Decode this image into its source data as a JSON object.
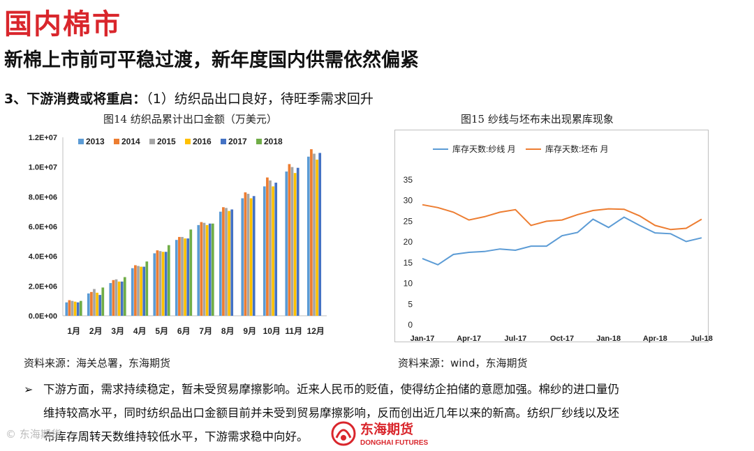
{
  "header": {
    "title": "国内棉市",
    "subtitle": "新棉上市前可平稳过渡，新年度国内供需依然偏紧",
    "section_strong": "3、下游消费或将重启：",
    "section_rest": "（1）纺织品出口良好，待旺季需求回升"
  },
  "figures": {
    "fig14_title": "图14 纺织品累计出口金额（万美元）",
    "fig15_title": "图15 纱线与坯布未出现累库现象",
    "fig14_source": "资料来源：海关总署，东海期货",
    "fig15_source": "资料来源：wind，东海期货"
  },
  "body": {
    "bullet": "➢",
    "line1": "下游方面，需求持续稳定，暂未受贸易摩擦影响。近来人民币的贬值，使得纺企拍储的意愿加强。棉纱的进口量仍",
    "line2": "维持较高水平，同时纺织品出口金额目前并未受到贸易摩擦影响，反而创出近几年以来的新高。纺织厂纱线以及坯",
    "line3": "布库存周转天数维持较低水平，下游需求稳中向好。"
  },
  "logo": {
    "name_cn": "东海期货",
    "name_en": "DONGHAI FUTURES",
    "color": "#d9262c"
  },
  "watermark": "© 东海期货",
  "chart_data": [
    {
      "type": "bar",
      "title": "图14 纺织品累计出口金额（万美元）",
      "categories": [
        "1月",
        "2月",
        "3月",
        "4月",
        "5月",
        "6月",
        "7月",
        "8月",
        "9月",
        "10月",
        "11月",
        "12月"
      ],
      "ylim": [
        0,
        12000000
      ],
      "yticks": [
        "0.0E+00",
        "2.0E+06",
        "4.0E+06",
        "6.0E+06",
        "8.0E+06",
        "1.0E+07",
        "1.2E+07"
      ],
      "legend_position": "top",
      "series": [
        {
          "name": "2013",
          "color": "#5b9bd5",
          "values": [
            900000,
            1500000,
            2200000,
            3200000,
            4200000,
            5100000,
            6100000,
            7000000,
            7900000,
            8700000,
            9700000,
            10700000
          ]
        },
        {
          "name": "2014",
          "color": "#ed7d31",
          "values": [
            1050000,
            1600000,
            2400000,
            3400000,
            4400000,
            5300000,
            6300000,
            7300000,
            8300000,
            9300000,
            10200000,
            11200000
          ]
        },
        {
          "name": "2015",
          "color": "#a5a5a5",
          "values": [
            1000000,
            1800000,
            2450000,
            3350000,
            4350000,
            5300000,
            6250000,
            7250000,
            8200000,
            9100000,
            10000000,
            10900000
          ]
        },
        {
          "name": "2016",
          "color": "#ffc000",
          "values": [
            950000,
            1550000,
            2300000,
            3300000,
            4300000,
            5200000,
            6100000,
            7050000,
            7900000,
            8700000,
            9600000,
            10500000
          ]
        },
        {
          "name": "2017",
          "color": "#4472c4",
          "values": [
            900000,
            1400000,
            2300000,
            3300000,
            4300000,
            5200000,
            6200000,
            7150000,
            8050000,
            8950000,
            9950000,
            10950000
          ]
        },
        {
          "name": "2018",
          "color": "#70ad47",
          "values": [
            1000000,
            1900000,
            2600000,
            3650000,
            4750000,
            5800000,
            6200000,
            null,
            null,
            null,
            null,
            null
          ]
        }
      ]
    },
    {
      "type": "line",
      "title": "图15 纱线与坯布未出现累库现象",
      "x": [
        "Jan-17",
        "Feb-17",
        "Mar-17",
        "Apr-17",
        "May-17",
        "Jun-17",
        "Jul-17",
        "Aug-17",
        "Sep-17",
        "Oct-17",
        "Nov-17",
        "Dec-17",
        "Jan-18",
        "Feb-18",
        "Mar-18",
        "Apr-18",
        "May-18",
        "Jun-18",
        "Jul-18"
      ],
      "xtick_labels": [
        "Jan-17",
        "Apr-17",
        "Jul-17",
        "Oct-17",
        "Jan-18",
        "Apr-18",
        "Jul-18"
      ],
      "ylim": [
        0,
        35
      ],
      "yticks": [
        "0",
        "5",
        "10",
        "15",
        "20",
        "25",
        "30",
        "35"
      ],
      "legend_position": "top-left",
      "series": [
        {
          "name": "库存天数:纱线 月",
          "color": "#5b9bd5",
          "values": [
            16,
            14.5,
            17,
            17.5,
            17.7,
            18.3,
            18,
            19,
            19,
            21.5,
            22.3,
            25.5,
            23.5,
            26,
            24,
            22.2,
            22,
            20.1,
            21
          ]
        },
        {
          "name": "库存天数:坯布 月",
          "color": "#ed7d31",
          "values": [
            29,
            28.3,
            27.2,
            25.3,
            26.1,
            27.2,
            27.8,
            24,
            25,
            25.3,
            26.6,
            27.6,
            28,
            27.9,
            26.3,
            24,
            23,
            23.3,
            25.5
          ]
        }
      ]
    }
  ]
}
